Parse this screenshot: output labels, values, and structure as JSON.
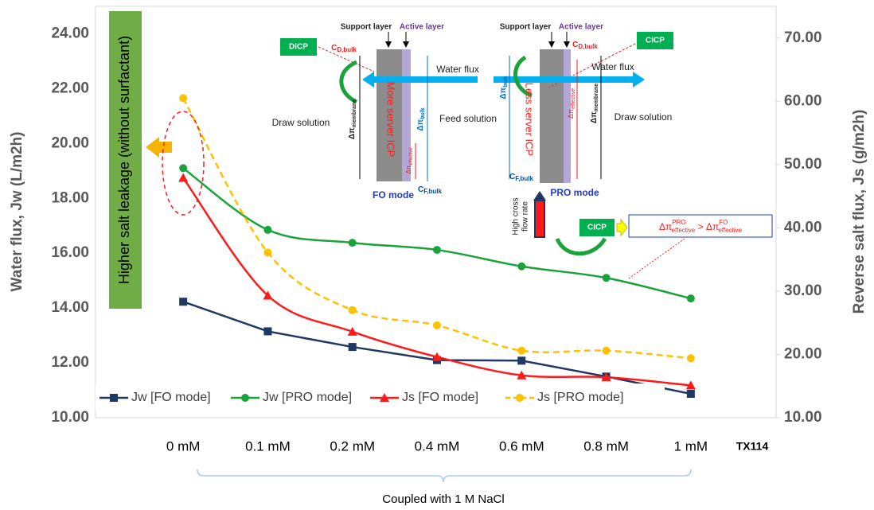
{
  "chart_data": {
    "type": "line",
    "categories": [
      "0 mM",
      "0.1 mM",
      "0.2 mM",
      "0.4 mM",
      "0.6 mM",
      "0.8 mM",
      "1 mM"
    ],
    "ylabel": "Water flux, Jw (L/m2h)",
    "y2label": "Reverse salt flux, Js (g/m2h)",
    "ylim": [
      10,
      25
    ],
    "yticks": [
      {
        "value": 10,
        "label": "10.00"
      },
      {
        "value": 12,
        "label": "12.00"
      },
      {
        "value": 14,
        "label": "14.00"
      },
      {
        "value": 16,
        "label": "16.00"
      },
      {
        "value": 18,
        "label": "18.00"
      },
      {
        "value": 20,
        "label": "20.00"
      },
      {
        "value": 22,
        "label": "22.00"
      },
      {
        "value": 24,
        "label": "24.00"
      }
    ],
    "y2lim": [
      10,
      75
    ],
    "y2ticks": [
      {
        "value": 10,
        "label": "10.00"
      },
      {
        "value": 20,
        "label": "20.00"
      },
      {
        "value": 30,
        "label": "30.00"
      },
      {
        "value": 40,
        "label": "40.00"
      },
      {
        "value": 50,
        "label": "50.00"
      },
      {
        "value": 60,
        "label": "60.00"
      },
      {
        "value": 70,
        "label": "70.00"
      }
    ],
    "series": [
      {
        "name": "Jw [FO mode]",
        "color": "#1f3864",
        "marker": "square",
        "smooth": false,
        "dashed": false,
        "values": [
          14.23,
          13.15,
          12.58,
          12.1,
          12.08,
          11.5,
          10.87
        ]
      },
      {
        "name": "Jw [PRO mode]",
        "color": "#1aa33a",
        "marker": "circle",
        "smooth": true,
        "dashed": false,
        "values": [
          19.1,
          16.85,
          16.38,
          16.12,
          15.52,
          15.1,
          14.35
        ]
      },
      {
        "name": "Js [FO mode]",
        "color": "#ff1a1a",
        "marker": "triangle",
        "smooth": true,
        "dashed": false,
        "axis": "y2",
        "values": [
          47.9,
          29.3,
          23.6,
          19.6,
          16.7,
          16.4,
          15.1
        ]
      },
      {
        "name": "Js [PRO mode]",
        "color": "#ffc000",
        "marker": "circle",
        "smooth": true,
        "dashed": true,
        "axis": "y2",
        "values": [
          60.5,
          36.1,
          27.0,
          24.6,
          20.6,
          20.6,
          19.4
        ]
      }
    ],
    "legend": "bottom-left",
    "annotations": {
      "x_note": "TX114",
      "bracket_label": "Coupled with 1 M NaCl",
      "leakage": "Higher salt leakage (without surfactant)",
      "fo": {
        "support": "Support layer",
        "active": "Active layer",
        "dicp": "DICP",
        "c_d": [
          "C",
          "D,bulk"
        ],
        "water_flux": "Water flux",
        "draw": "Draw solution",
        "feed": "Feed solution",
        "icp": "More server ICP",
        "mode": "FO mode",
        "c_f": [
          "C",
          "F,bulk"
        ],
        "dpi_membrane": [
          "Δπ",
          "membrane"
        ],
        "dpi_bulk": [
          "Δπ",
          "bulk"
        ],
        "dpi_effective": [
          "Δπ",
          "effective"
        ]
      },
      "pro": {
        "support": "Support layer",
        "active": "Active layer",
        "cicp": "CICP",
        "c_d": [
          "C",
          "D,bulk"
        ],
        "water_flux": "Water flux",
        "draw": "Draw solution",
        "icp": "Less server ICP",
        "mode": "PRO mode",
        "c_f": [
          "C",
          "F,bulk"
        ],
        "dpi_membrane": [
          "Δπ",
          "membrane"
        ],
        "dpi_bulk": [
          "Δπ",
          "bulk"
        ],
        "dpi_effective": [
          "Δπ",
          "effective"
        ],
        "cross_flow": [
          "High cross",
          "flow rate"
        ]
      },
      "cicp2": "CICP",
      "equation": [
        "Δπ",
        "PRO",
        "effective",
        " > ",
        "Δπ",
        "FO",
        "effective"
      ]
    }
  }
}
